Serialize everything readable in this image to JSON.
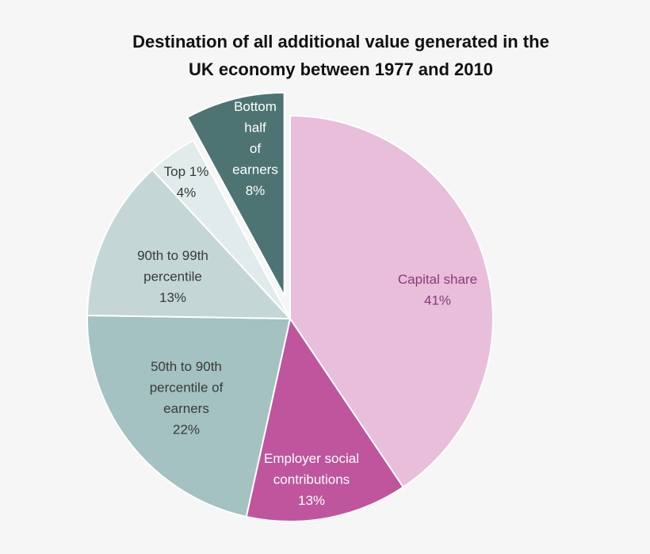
{
  "chart_data": {
    "type": "pie",
    "title": [
      "Destination of all additional value generated in the",
      "UK economy between 1977 and 2010"
    ],
    "start": "top",
    "direction": "clockwise",
    "legend": "none",
    "slices": [
      {
        "label": [
          "Capital share",
          "41%"
        ],
        "value": 41,
        "color": "#e8bedb",
        "text_color": "#8b3b75",
        "exploded": false
      },
      {
        "label": [
          "Employer social",
          "contributions",
          "13%"
        ],
        "value": 13,
        "color": "#bf559c",
        "text_color": "#ffffff",
        "exploded": false
      },
      {
        "label": [
          "50th to 90th",
          "percentile of",
          "earners",
          "22%"
        ],
        "value": 22,
        "color": "#a3c2c1",
        "text_color": "#3a3a3a",
        "exploded": false
      },
      {
        "label": [
          "90th to 99th",
          "percentile",
          "13%"
        ],
        "value": 13,
        "color": "#c4d7d6",
        "text_color": "#3a3a3a",
        "exploded": false
      },
      {
        "label": [
          "Top 1%",
          "4%"
        ],
        "value": 4,
        "color": "#e2ebeb",
        "text_color": "#3a3a3a",
        "exploded": false
      },
      {
        "label": [
          "Bottom",
          "half",
          "of",
          "earners",
          "8%"
        ],
        "value": 8,
        "color": "#4d7472",
        "text_color": "#ffffff",
        "exploded": true
      }
    ]
  }
}
